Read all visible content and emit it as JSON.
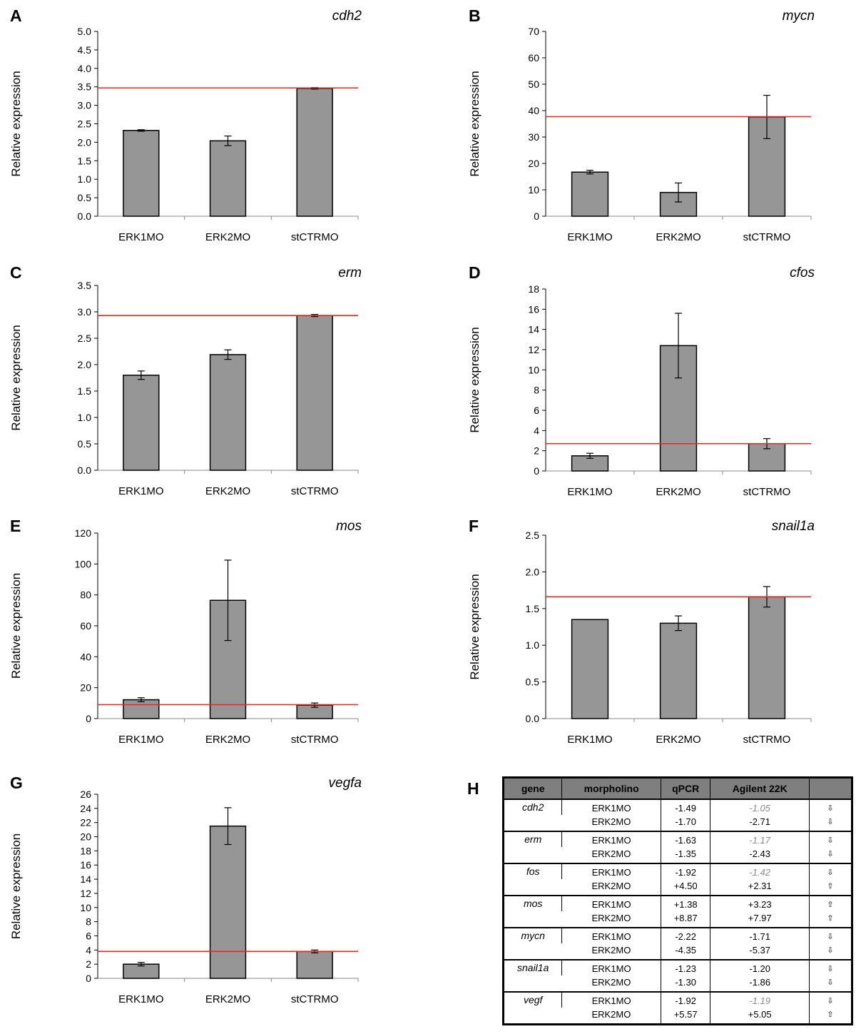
{
  "panels": [
    {
      "letter": "A",
      "chart_data": {
        "type": "bar",
        "title": "cdh2",
        "ylabel": "Relative expression",
        "categories": [
          "ERK1MO",
          "ERK2MO",
          "stCTRMO"
        ],
        "values": [
          2.32,
          2.04,
          3.46
        ],
        "errors": [
          0.02,
          0.13,
          0.02
        ],
        "reference_line": 3.47,
        "ylim": [
          0,
          5
        ],
        "yticks": [
          "0.0",
          "0.5",
          "1.0",
          "1.5",
          "2.0",
          "2.5",
          "3.0",
          "3.5",
          "4.0",
          "4.5",
          "5.0"
        ],
        "ytick_values": [
          0,
          0.5,
          1,
          1.5,
          2,
          2.5,
          3,
          3.5,
          4,
          4.5,
          5
        ]
      }
    },
    {
      "letter": "B",
      "chart_data": {
        "type": "bar",
        "title": "mycn",
        "ylabel": "Relative expression",
        "categories": [
          "ERK1MO",
          "ERK2MO",
          "stCTRMO"
        ],
        "values": [
          16.7,
          9.0,
          37.6
        ],
        "errors": [
          0.7,
          3.6,
          8.2
        ],
        "reference_line": 37.7,
        "ylim": [
          0,
          70
        ],
        "yticks": [
          "0",
          "10",
          "20",
          "30",
          "40",
          "50",
          "60",
          "70"
        ],
        "ytick_values": [
          0,
          10,
          20,
          30,
          40,
          50,
          60,
          70
        ]
      }
    },
    {
      "letter": "C",
      "chart_data": {
        "type": "bar",
        "title": "erm",
        "ylabel": "Relative expression",
        "categories": [
          "ERK1MO",
          "ERK2MO",
          "stCTRMO"
        ],
        "values": [
          1.8,
          2.19,
          2.93
        ],
        "errors": [
          0.08,
          0.09,
          0.02
        ],
        "reference_line": 2.93,
        "ylim": [
          0,
          3.5
        ],
        "yticks": [
          "0.0",
          "0.5",
          "1.0",
          "1.5",
          "2.0",
          "2.5",
          "3.0",
          "3.5"
        ],
        "ytick_values": [
          0,
          0.5,
          1,
          1.5,
          2,
          2.5,
          3,
          3.5
        ]
      }
    },
    {
      "letter": "D",
      "chart_data": {
        "type": "bar",
        "title": "cfos",
        "ylabel": "Relative expression",
        "categories": [
          "ERK1MO",
          "ERK2MO",
          "stCTRMO"
        ],
        "values": [
          1.5,
          12.4,
          2.7
        ],
        "errors": [
          0.25,
          3.2,
          0.5
        ],
        "reference_line": 2.7,
        "ylim": [
          0,
          18
        ],
        "yticks": [
          "0",
          "2",
          "4",
          "6",
          "8",
          "10",
          "12",
          "14",
          "16",
          "18"
        ],
        "ytick_values": [
          0,
          2,
          4,
          6,
          8,
          10,
          12,
          14,
          16,
          18
        ]
      }
    },
    {
      "letter": "E",
      "chart_data": {
        "type": "bar",
        "title": "mos",
        "ylabel": "Relative expression",
        "categories": [
          "ERK1MO",
          "ERK2MO",
          "stCTRMO"
        ],
        "values": [
          12.2,
          76.5,
          8.7
        ],
        "errors": [
          1.3,
          26.0,
          1.4
        ],
        "reference_line": 9.0,
        "ylim": [
          0,
          120
        ],
        "yticks": [
          "0",
          "20",
          "40",
          "60",
          "80",
          "100",
          "120"
        ],
        "ytick_values": [
          0,
          20,
          40,
          60,
          80,
          100,
          120
        ]
      }
    },
    {
      "letter": "F",
      "chart_data": {
        "type": "bar",
        "title": "snail1a",
        "ylabel": "Relative expression",
        "categories": [
          "ERK1MO",
          "ERK2MO",
          "stCTRMO"
        ],
        "values": [
          1.35,
          1.3,
          1.66
        ],
        "errors": [
          0.0,
          0.1,
          0.14
        ],
        "reference_line": 1.66,
        "ylim": [
          0,
          2.5
        ],
        "yticks": [
          "0.0",
          "0.5",
          "1.0",
          "1.5",
          "2.0",
          "2.5"
        ],
        "ytick_values": [
          0,
          0.5,
          1,
          1.5,
          2,
          2.5
        ]
      }
    },
    {
      "letter": "G",
      "chart_data": {
        "type": "bar",
        "title": "vegfa",
        "ylabel": "Relative expression",
        "categories": [
          "ERK1MO",
          "ERK2MO",
          "stCTRMO"
        ],
        "values": [
          2.0,
          21.5,
          3.8
        ],
        "errors": [
          0.25,
          2.6,
          0.2
        ],
        "reference_line": 3.8,
        "ylim": [
          0,
          26
        ],
        "yticks": [
          "0",
          "2",
          "4",
          "6",
          "8",
          "10",
          "12",
          "14",
          "16",
          "18",
          "20",
          "22",
          "24",
          "26"
        ],
        "ytick_values": [
          0,
          2,
          4,
          6,
          8,
          10,
          12,
          14,
          16,
          18,
          20,
          22,
          24,
          26
        ]
      }
    }
  ],
  "table": {
    "letter": "H",
    "headers": [
      "gene",
      "morpholino",
      "qPCR",
      "Agilent 22K",
      ""
    ],
    "groups": [
      {
        "gene": "cdh2",
        "rows": [
          {
            "morpholino": "ERK1MO",
            "qpcr": "-1.49",
            "agilent": "-1.05",
            "agilent_gray": true,
            "arrow": "⇩"
          },
          {
            "morpholino": "ERK2MO",
            "qpcr": "-1.70",
            "agilent": "-2.71",
            "agilent_gray": false,
            "arrow": "⇩"
          }
        ]
      },
      {
        "gene": "erm",
        "rows": [
          {
            "morpholino": "ERK1MO",
            "qpcr": "-1.63",
            "agilent": "-1.17",
            "agilent_gray": true,
            "arrow": "⇩"
          },
          {
            "morpholino": "ERK2MO",
            "qpcr": "-1.35",
            "agilent": "-2.43",
            "agilent_gray": false,
            "arrow": "⇩"
          }
        ]
      },
      {
        "gene": "fos",
        "rows": [
          {
            "morpholino": "ERK1MO",
            "qpcr": "-1.92",
            "agilent": "-1.42",
            "agilent_gray": true,
            "arrow": "⇩"
          },
          {
            "morpholino": "ERK2MO",
            "qpcr": "+4.50",
            "agilent": "+2.31",
            "agilent_gray": false,
            "arrow": "⇧"
          }
        ]
      },
      {
        "gene": "mos",
        "rows": [
          {
            "morpholino": "ERK1MO",
            "qpcr": "+1.38",
            "agilent": "+3.23",
            "agilent_gray": false,
            "arrow": "⇧"
          },
          {
            "morpholino": "ERK2MO",
            "qpcr": "+8.87",
            "agilent": "+7.97",
            "agilent_gray": false,
            "arrow": "⇧"
          }
        ]
      },
      {
        "gene": "mycn",
        "rows": [
          {
            "morpholino": "ERK1MO",
            "qpcr": "-2.22",
            "agilent": "-1.71",
            "agilent_gray": false,
            "arrow": "⇩"
          },
          {
            "morpholino": "ERK2MO",
            "qpcr": "-4.35",
            "agilent": "-5.37",
            "agilent_gray": false,
            "arrow": "⇩"
          }
        ]
      },
      {
        "gene": "snail1a",
        "rows": [
          {
            "morpholino": "ERK1MO",
            "qpcr": "-1.23",
            "agilent": "-1.20",
            "agilent_gray": false,
            "arrow": "⇩"
          },
          {
            "morpholino": "ERK2MO",
            "qpcr": "-1.30",
            "agilent": "-1.86",
            "agilent_gray": false,
            "arrow": "⇩"
          }
        ]
      },
      {
        "gene": "vegf",
        "rows": [
          {
            "morpholino": "ERK1MO",
            "qpcr": "-1.92",
            "agilent": "-1.19",
            "agilent_gray": true,
            "arrow": "⇩"
          },
          {
            "morpholino": "ERK2MO",
            "qpcr": "+5.57",
            "agilent": "+5.05",
            "agilent_gray": false,
            "arrow": "⇧"
          }
        ]
      }
    ]
  },
  "colors": {
    "bar_fill": "#969696",
    "reference_line": "#e8281e",
    "axis": "#000000",
    "table_header": "#7f7f7f",
    "gray_value": "#8c8c8c"
  }
}
